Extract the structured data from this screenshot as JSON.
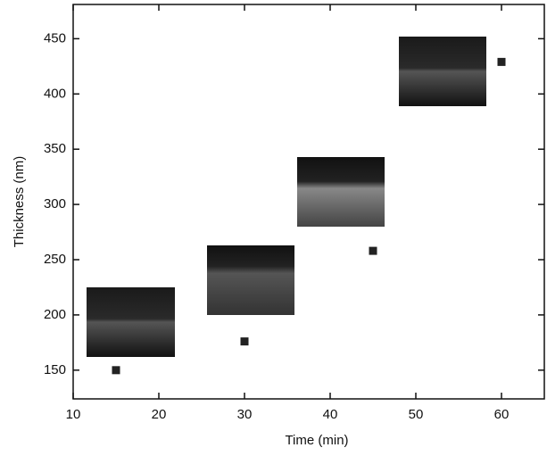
{
  "chart_data": {
    "type": "scatter",
    "x_label": "Time (min)",
    "y_label": "Thickness (nm)",
    "x": [
      15,
      30,
      45,
      60
    ],
    "values": [
      150,
      176,
      258,
      429
    ],
    "color": "#222222",
    "xlim": [
      10,
      65
    ],
    "xticks": [
      10,
      20,
      30,
      40,
      50,
      60
    ],
    "ylim": [
      124,
      481
    ],
    "yticks": [
      150,
      200,
      250,
      300,
      350,
      400,
      450
    ]
  }
}
